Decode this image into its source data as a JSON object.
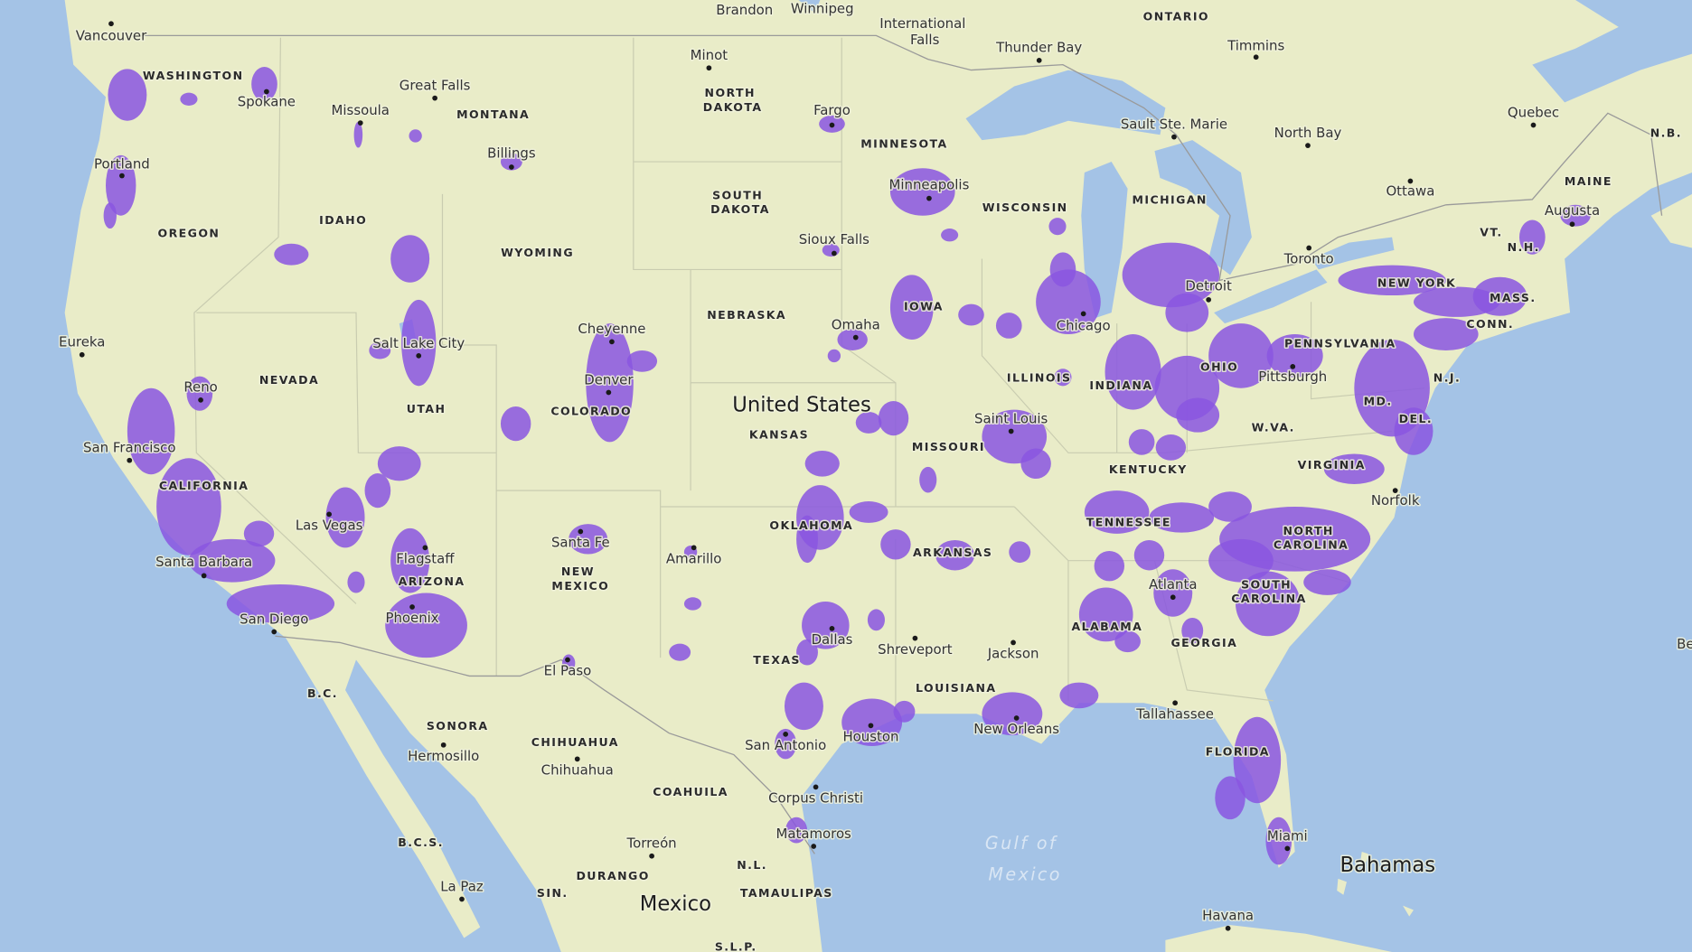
{
  "countries": [
    "United States",
    "Mexico",
    "Bahamas"
  ],
  "water": [
    "Gulf of Mexico",
    "Be"
  ],
  "regions": [
    "ONTARIO",
    "WASHINGTON",
    "MONTANA",
    "NORTH DAKOTA",
    "MINNESOTA",
    "SOUTH DAKOTA",
    "WISCONSIN",
    "MICHIGAN",
    "OREGON",
    "IDAHO",
    "WYOMING",
    "NEBRASKA",
    "IOWA",
    "NEW YORK",
    "VT.",
    "N.H.",
    "MAINE",
    "N.B.",
    "MASS.",
    "CONN.",
    "PENNSYLVANIA",
    "NEVADA",
    "UTAH",
    "COLORADO",
    "ILLINOIS",
    "INDIANA",
    "OHIO",
    "N.J.",
    "MD.",
    "DEL.",
    "W.VA.",
    "KANSAS",
    "MISSOURI",
    "KENTUCKY",
    "VIRGINIA",
    "CALIFORNIA",
    "TENNESSEE",
    "NORTH CAROLINA",
    "OKLAHOMA",
    "ARKANSAS",
    "SOUTH CAROLINA",
    "NEW MEXICO",
    "ARIZONA",
    "ALABAMA",
    "GEORGIA",
    "TEXAS",
    "LOUISIANA",
    "FLORIDA",
    "B.C.",
    "SONORA",
    "CHIHUAHUA",
    "COAHUILA",
    "N.L.",
    "B.C.S.",
    "DURANGO",
    "SIN.",
    "TAMAULIPAS",
    "S.L.P."
  ],
  "cities": [
    "Vancouver",
    "Brandon",
    "Winnipeg",
    "International Falls",
    "Thunder Bay",
    "Timmins",
    "Minot",
    "Great Falls",
    "Spokane",
    "Missoula",
    "Fargo",
    "Sault Ste. Marie",
    "North Bay",
    "Quebec",
    "Billings",
    "Portland",
    "Minneapolis",
    "Ottawa",
    "Augusta",
    "Sioux Falls",
    "Toronto",
    "Detroit",
    "Omaha",
    "Chicago",
    "Cheyenne",
    "Eureka",
    "Salt Lake City",
    "Pittsburgh",
    "Denver",
    "Reno",
    "Saint Louis",
    "San Francisco",
    "Norfolk",
    "Las Vegas",
    "Santa Fe",
    "Flagstaff",
    "Amarillo",
    "Santa Barbara",
    "Atlanta",
    "Phoenix",
    "San Diego",
    "Dallas",
    "Shreveport",
    "Jackson",
    "El Paso",
    "Tallahassee",
    "New Orleans",
    "Houston",
    "San Antonio",
    "Hermosillo",
    "Chihuahua",
    "Corpus Christi",
    "Matamoros",
    "Miami",
    "Torreón",
    "La Paz",
    "Havana"
  ]
}
